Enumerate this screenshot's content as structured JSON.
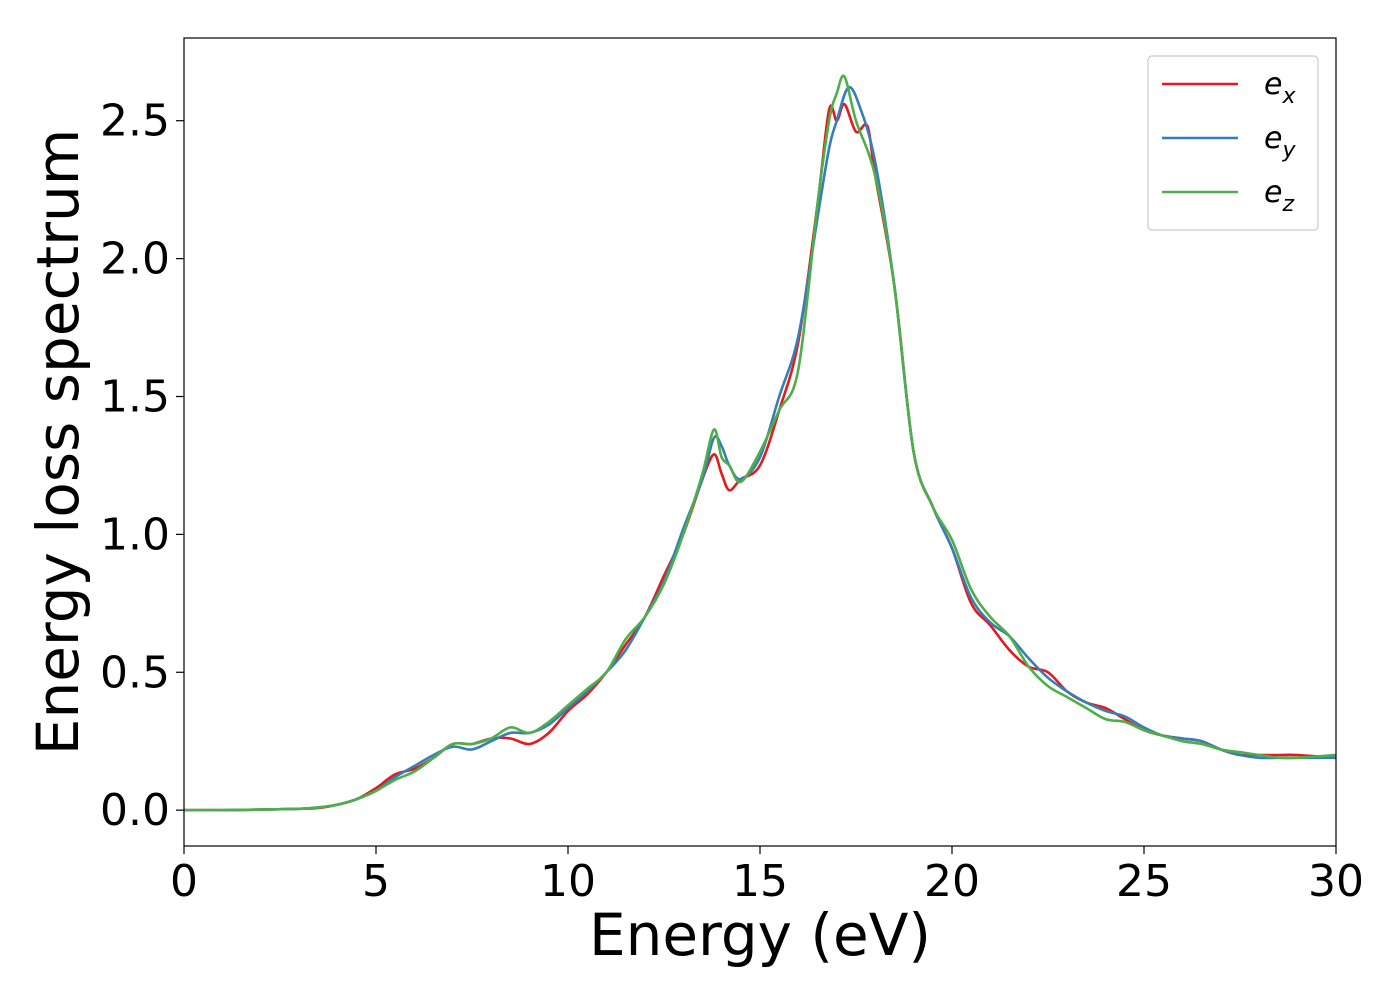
{
  "chart_data": {
    "type": "line",
    "xlabel": "Energy (eV)",
    "ylabel": "Energy loss spectrum",
    "xlim": [
      0,
      30
    ],
    "ylim": [
      -0.13,
      2.8
    ],
    "xticks": [
      0,
      5,
      10,
      15,
      20,
      25,
      30
    ],
    "xtick_labels": [
      "0",
      "5",
      "10",
      "15",
      "20",
      "25",
      "30"
    ],
    "yticks": [
      0.0,
      0.5,
      1.0,
      1.5,
      2.0,
      2.5
    ],
    "ytick_labels": [
      "0.0",
      "0.5",
      "1.0",
      "1.5",
      "2.0",
      "2.5"
    ],
    "grid": false,
    "legend_position": "top-right",
    "series": [
      {
        "name": "e_x",
        "label_base": "e",
        "label_sub": "x",
        "color": "#e41a1c",
        "x": [
          0,
          1,
          2,
          3,
          3.5,
          4,
          4.5,
          5,
          5.5,
          6,
          6.5,
          7,
          7.5,
          8,
          8.5,
          9,
          9.5,
          10,
          10.5,
          11,
          11.5,
          12,
          12.5,
          13,
          13.5,
          13.8,
          14,
          14.2,
          14.5,
          15,
          15.5,
          16,
          16.5,
          16.8,
          17,
          17.2,
          17.5,
          17.8,
          18,
          18.5,
          19,
          19.5,
          20,
          20.5,
          21,
          21.5,
          22,
          22.5,
          23,
          23.5,
          24,
          24.5,
          25,
          25.5,
          26,
          26.5,
          27,
          27.5,
          28,
          28.5,
          29,
          30
        ],
        "y": [
          0,
          0,
          0.002,
          0.005,
          0.008,
          0.02,
          0.04,
          0.08,
          0.13,
          0.15,
          0.19,
          0.24,
          0.24,
          0.26,
          0.26,
          0.24,
          0.28,
          0.36,
          0.42,
          0.5,
          0.6,
          0.7,
          0.85,
          1.0,
          1.2,
          1.29,
          1.22,
          1.16,
          1.2,
          1.25,
          1.45,
          1.7,
          2.2,
          2.54,
          2.5,
          2.56,
          2.46,
          2.48,
          2.3,
          1.9,
          1.3,
          1.1,
          0.95,
          0.75,
          0.67,
          0.58,
          0.52,
          0.5,
          0.43,
          0.39,
          0.37,
          0.33,
          0.29,
          0.27,
          0.26,
          0.25,
          0.22,
          0.2,
          0.2,
          0.2,
          0.2,
          0.19
        ]
      },
      {
        "name": "e_y",
        "label_base": "e",
        "label_sub": "y",
        "color": "#377eb8",
        "x": [
          0,
          1,
          2,
          3,
          3.5,
          4,
          4.5,
          5,
          5.5,
          6,
          6.5,
          7,
          7.5,
          8,
          8.5,
          9,
          9.5,
          10,
          10.5,
          11,
          11.5,
          12,
          12.5,
          13,
          13.5,
          13.8,
          14,
          14.2,
          14.5,
          15,
          15.5,
          16,
          16.5,
          16.8,
          17,
          17.3,
          17.6,
          18,
          18.5,
          19,
          19.5,
          20,
          20.5,
          21,
          21.5,
          22,
          22.5,
          23,
          23.5,
          24,
          24.5,
          25,
          25.5,
          26,
          26.5,
          27,
          27.5,
          28,
          28.5,
          29,
          30
        ],
        "y": [
          0,
          0,
          0.002,
          0.005,
          0.01,
          0.02,
          0.04,
          0.07,
          0.12,
          0.16,
          0.2,
          0.23,
          0.22,
          0.25,
          0.28,
          0.28,
          0.31,
          0.37,
          0.43,
          0.5,
          0.58,
          0.7,
          0.83,
          1.02,
          1.2,
          1.35,
          1.32,
          1.25,
          1.2,
          1.28,
          1.5,
          1.72,
          2.15,
          2.4,
          2.5,
          2.62,
          2.55,
          2.35,
          1.9,
          1.3,
          1.1,
          0.95,
          0.77,
          0.68,
          0.63,
          0.55,
          0.48,
          0.43,
          0.39,
          0.36,
          0.34,
          0.3,
          0.27,
          0.26,
          0.25,
          0.22,
          0.2,
          0.19,
          0.19,
          0.19,
          0.19
        ]
      },
      {
        "name": "e_z",
        "label_base": "e",
        "label_sub": "z",
        "color": "#4daf4a",
        "x": [
          0,
          1,
          2,
          3,
          3.5,
          4,
          4.5,
          5,
          5.5,
          6,
          6.5,
          7,
          7.5,
          8,
          8.5,
          9,
          9.5,
          10,
          10.5,
          11,
          11.5,
          12,
          12.5,
          13,
          13.5,
          13.8,
          14,
          14.2,
          14.5,
          15,
          15.5,
          16,
          16.5,
          16.8,
          17,
          17.2,
          17.5,
          18,
          18.5,
          19,
          19.5,
          20,
          20.5,
          21,
          21.5,
          22,
          22.5,
          23,
          23.5,
          24,
          24.5,
          25,
          25.5,
          26,
          26.5,
          27,
          27.5,
          28,
          28.5,
          29,
          30
        ],
        "y": [
          0,
          0,
          0.002,
          0.005,
          0.01,
          0.02,
          0.04,
          0.07,
          0.11,
          0.14,
          0.19,
          0.24,
          0.24,
          0.26,
          0.3,
          0.28,
          0.32,
          0.38,
          0.44,
          0.5,
          0.62,
          0.7,
          0.82,
          1.0,
          1.22,
          1.38,
          1.28,
          1.25,
          1.19,
          1.3,
          1.45,
          1.6,
          2.2,
          2.5,
          2.6,
          2.66,
          2.5,
          2.3,
          1.9,
          1.3,
          1.1,
          0.98,
          0.8,
          0.7,
          0.63,
          0.52,
          0.45,
          0.41,
          0.37,
          0.33,
          0.32,
          0.29,
          0.27,
          0.25,
          0.24,
          0.22,
          0.21,
          0.2,
          0.19,
          0.19,
          0.2
        ]
      }
    ]
  }
}
